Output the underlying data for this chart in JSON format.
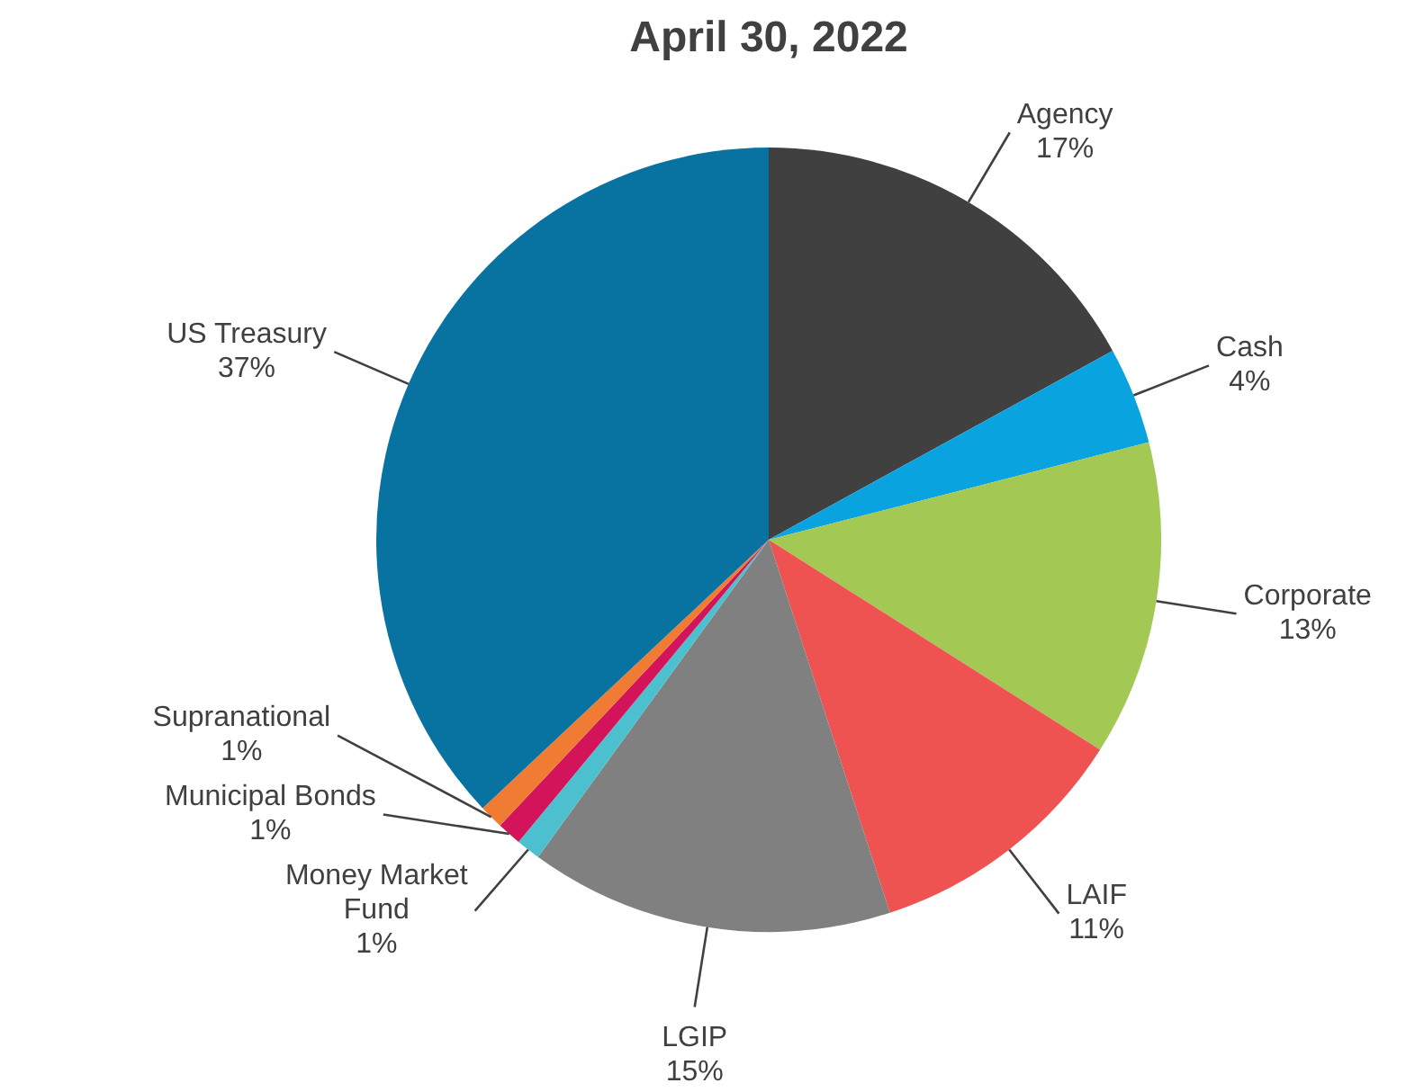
{
  "chart_data": {
    "type": "pie",
    "title": "April 30, 2022",
    "categories": [
      "Agency",
      "Cash",
      "Corporate",
      "LAIF",
      "LGIP",
      "Money Market Fund",
      "Municipal Bonds",
      "Supranational",
      "US Treasury"
    ],
    "values": [
      17,
      4,
      13,
      11,
      15,
      1,
      1,
      1,
      37
    ],
    "value_labels": [
      "17%",
      "4%",
      "13%",
      "11%",
      "15%",
      "1%",
      "1%",
      "1%",
      "37%"
    ],
    "colors": [
      "#404040",
      "#09a3e0",
      "#a3c853",
      "#ee5352",
      "#808080",
      "#4cc0cf",
      "#d4145a",
      "#f07b32",
      "#0872a0"
    ]
  }
}
